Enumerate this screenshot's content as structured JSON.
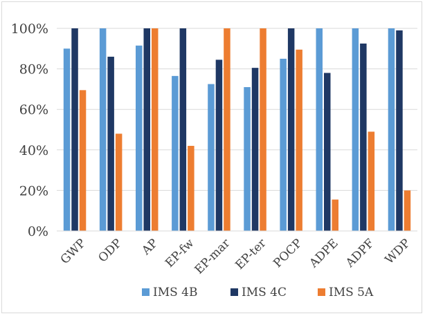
{
  "chart_data": {
    "type": "bar",
    "categories": [
      "GWP",
      "ODP",
      "AP",
      "EP-fw",
      "EP-mar",
      "EP-ter",
      "POCP",
      "ADPE",
      "ADPF",
      "WDP"
    ],
    "series": [
      {
        "name": "IMS 4B",
        "color": "#5b9bd5",
        "values": [
          90,
          100,
          91.5,
          76.5,
          72.5,
          71,
          85,
          100,
          100,
          100
        ]
      },
      {
        "name": "IMS 4C",
        "color": "#1f3864",
        "values": [
          100,
          86,
          100,
          100,
          84.5,
          80.5,
          100,
          78,
          92.5,
          99
        ]
      },
      {
        "name": "IMS 5A",
        "color": "#ed7d31",
        "values": [
          69.5,
          48,
          100,
          42,
          100,
          100,
          89.5,
          15.5,
          49,
          20
        ]
      }
    ],
    "yticks": [
      "0%",
      "20%",
      "40%",
      "60%",
      "80%",
      "100%"
    ],
    "ylim": [
      0,
      100
    ],
    "grid": true,
    "legend_position": "bottom"
  }
}
